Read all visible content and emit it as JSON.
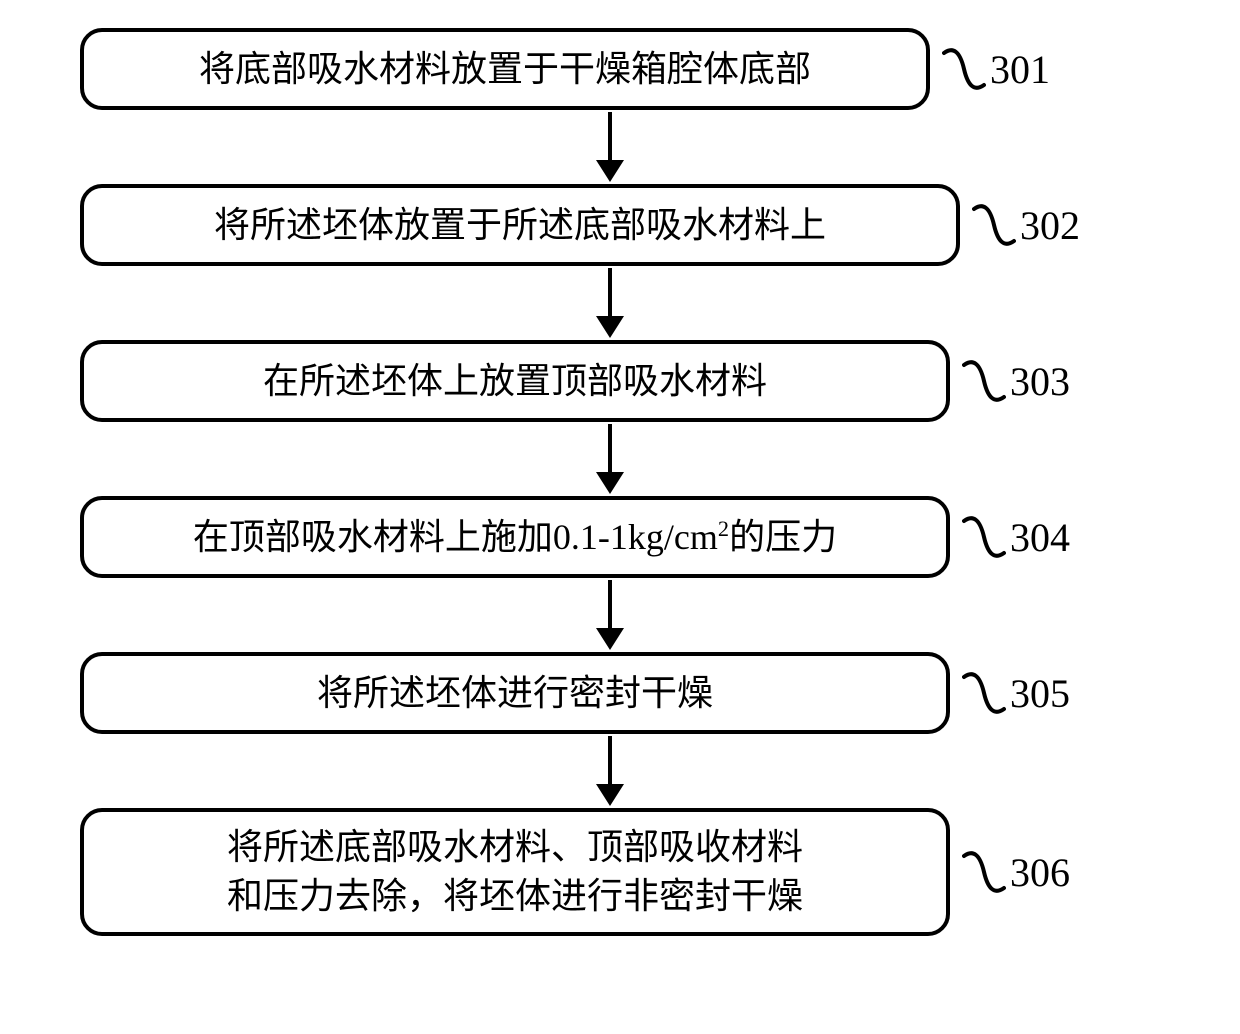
{
  "flowchart": {
    "type": "flowchart",
    "background_color": "#ffffff",
    "box_style": {
      "border_color": "#000000",
      "border_width": 4,
      "border_radius": 22,
      "fill": "#ffffff",
      "font_size": 36,
      "font_family": "SimSun",
      "text_color": "#000000"
    },
    "arrow_style": {
      "stroke": "#000000",
      "stroke_width": 4,
      "head_width": 30,
      "head_height": 20,
      "total_height": 70
    },
    "label_style": {
      "font_size": 40,
      "text_color": "#000000",
      "connector_stroke": "#000000",
      "connector_stroke_width": 4
    },
    "steps": [
      {
        "id": "301",
        "text": "将底部吸水材料放置于干燥箱腔体底部",
        "label": "301",
        "lines": 1
      },
      {
        "id": "302",
        "text": "将所述坯体放置于所述底部吸水材料上",
        "label": "302",
        "lines": 1
      },
      {
        "id": "303",
        "text": "在所述坯体上放置顶部吸水材料",
        "label": "303",
        "lines": 1
      },
      {
        "id": "304",
        "text_html": "在顶部吸水材料上施加0.1-1kg/cm<sup>2</sup>的压力",
        "text": "在顶部吸水材料上施加0.1-1kg/cm²的压力",
        "label": "304",
        "lines": 1
      },
      {
        "id": "305",
        "text": "将所述坯体进行密封干燥",
        "label": "305",
        "lines": 1
      },
      {
        "id": "306",
        "text": "将所述底部吸水材料、顶部吸收材料\n和压力去除，将坯体进行非密封干燥",
        "label": "306",
        "lines": 2
      }
    ]
  }
}
